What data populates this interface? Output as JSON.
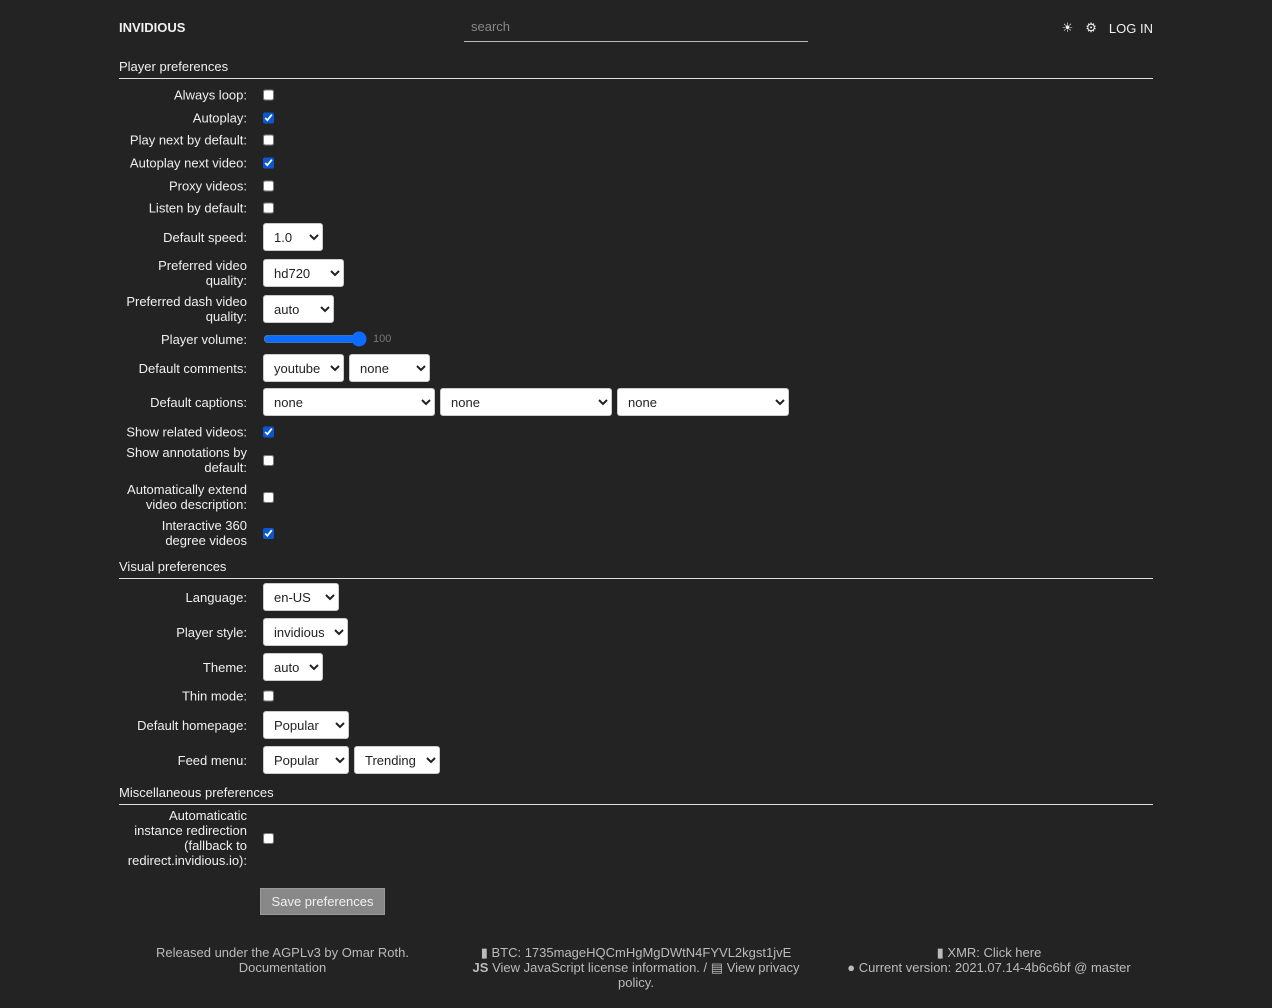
{
  "header": {
    "brand": "INVIDIOUS",
    "search_placeholder": "search",
    "theme_icon": "sun-icon",
    "settings_icon": "gear-icon",
    "login": "LOG IN"
  },
  "player": {
    "title": "Player preferences",
    "always_loop": {
      "label": "Always loop:",
      "checked": false
    },
    "autoplay": {
      "label": "Autoplay:",
      "checked": true
    },
    "play_next": {
      "label": "Play next by default:",
      "checked": false
    },
    "autoplay_next": {
      "label": "Autoplay next video:",
      "checked": true
    },
    "proxy": {
      "label": "Proxy videos:",
      "checked": false
    },
    "listen": {
      "label": "Listen by default:",
      "checked": false
    },
    "speed": {
      "label": "Default speed:",
      "value": "1.0"
    },
    "quality": {
      "label": "Preferred video quality:",
      "value": "hd720"
    },
    "dash": {
      "label": "Preferred dash video quality:",
      "value": "auto"
    },
    "volume": {
      "label": "Player volume:",
      "value": "100"
    },
    "comments": {
      "label": "Default comments:",
      "values": [
        "youtube",
        "none"
      ]
    },
    "captions": {
      "label": "Default captions:",
      "values": [
        "none",
        "none",
        "none"
      ]
    },
    "related": {
      "label": "Show related videos:",
      "checked": true
    },
    "annotations": {
      "label": "Show annotations by default:",
      "checked": false
    },
    "extend": {
      "label": "Automatically extend video description:",
      "checked": false
    },
    "vr": {
      "label": "Interactive 360 degree videos",
      "checked": true
    }
  },
  "visual": {
    "title": "Visual preferences",
    "language": {
      "label": "Language:",
      "value": "en-US"
    },
    "player_style": {
      "label": "Player style:",
      "value": "invidious"
    },
    "theme": {
      "label": "Theme:",
      "value": "auto"
    },
    "thin": {
      "label": "Thin mode:",
      "checked": false
    },
    "homepage": {
      "label": "Default homepage:",
      "value": "Popular"
    },
    "feed": {
      "label": "Feed menu:",
      "values": [
        "Popular",
        "Trending"
      ]
    }
  },
  "misc": {
    "title": "Miscellaneous preferences",
    "redirect": {
      "label": "Automaticatic instance redirection (fallback to redirect.invidious.io):",
      "checked": false
    }
  },
  "save": "Save preferences",
  "footer": {
    "released": "Released under the AGPLv3 by Omar Roth.",
    "documentation": "Documentation",
    "btc": "BTC: 1735mageHQCmHgMgDWtN4FYVL2kgst1jvE",
    "js": "View JavaScript license information.",
    "sep": "/",
    "privacy": "View privacy policy.",
    "xmr": "XMR: Click here",
    "version": "Current version: 2021.07.14-4b6c6bf @ master"
  }
}
